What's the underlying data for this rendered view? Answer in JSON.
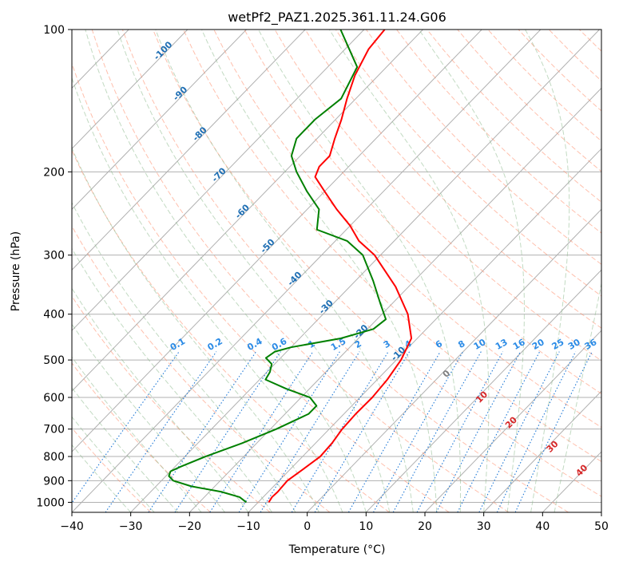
{
  "chart_data": {
    "type": "line",
    "title": "wetPf2_PAZ1.2025.361.11.24.G06",
    "xlabel": "Temperature (°C)",
    "ylabel": "Pressure (hPa)",
    "xlim": [
      -40,
      50
    ],
    "ylim": [
      1050,
      100
    ],
    "x_ticks": [
      "−40",
      "−30",
      "−20",
      "−10",
      "0",
      "10",
      "20",
      "30",
      "40",
      "50"
    ],
    "y_ticks": [
      {
        "p": 100,
        "label": "100"
      },
      {
        "p": 200,
        "label": "200"
      },
      {
        "p": 300,
        "label": "300"
      },
      {
        "p": 400,
        "label": "400"
      },
      {
        "p": 500,
        "label": "500"
      },
      {
        "p": 600,
        "label": "600"
      },
      {
        "p": 700,
        "label": "700"
      },
      {
        "p": 800,
        "label": "800"
      },
      {
        "p": 900,
        "label": "900"
      },
      {
        "p": 1000,
        "label": "1000"
      }
    ],
    "colors": {
      "temperature": "#ff0000",
      "dewpoint": "#008000",
      "isotherm_grid": "#b0b0b0",
      "dry_adiabat": "#ff8c69",
      "moist_adiabat": "#8fbc8f",
      "mixing_ratio": "#1e78d6",
      "isotherm_label": "#1f6fb4",
      "moist_label": "#d62728"
    },
    "series": [
      {
        "name": "Temperature",
        "points": [
          {
            "p": 1000,
            "t": -8.2
          },
          {
            "p": 975,
            "t": -8.5
          },
          {
            "p": 950,
            "t": -8.4
          },
          {
            "p": 900,
            "t": -8.6
          },
          {
            "p": 850,
            "t": -7.8
          },
          {
            "p": 800,
            "t": -7.0
          },
          {
            "p": 750,
            "t": -7.2
          },
          {
            "p": 700,
            "t": -7.8
          },
          {
            "p": 650,
            "t": -8.0
          },
          {
            "p": 600,
            "t": -7.9
          },
          {
            "p": 550,
            "t": -8.3
          },
          {
            "p": 500,
            "t": -9.2
          },
          {
            "p": 450,
            "t": -11.0
          },
          {
            "p": 400,
            "t": -15.6
          },
          {
            "p": 350,
            "t": -22.2
          },
          {
            "p": 300,
            "t": -31.0
          },
          {
            "p": 280,
            "t": -36.0
          },
          {
            "p": 260,
            "t": -40.0
          },
          {
            "p": 240,
            "t": -45.0
          },
          {
            "p": 220,
            "t": -50.0
          },
          {
            "p": 205,
            "t": -54.0
          },
          {
            "p": 195,
            "t": -55.0
          },
          {
            "p": 185,
            "t": -55.0
          },
          {
            "p": 170,
            "t": -57.0
          },
          {
            "p": 155,
            "t": -59.0
          },
          {
            "p": 140,
            "t": -61.5
          },
          {
            "p": 125,
            "t": -64.0
          },
          {
            "p": 110,
            "t": -66.0
          },
          {
            "p": 100,
            "t": -66.5
          }
        ]
      },
      {
        "name": "Dewpoint",
        "points": [
          {
            "p": 1000,
            "t": -12.0
          },
          {
            "p": 975,
            "t": -14.0
          },
          {
            "p": 950,
            "t": -18.0
          },
          {
            "p": 925,
            "t": -24.0
          },
          {
            "p": 900,
            "t": -28.0
          },
          {
            "p": 880,
            "t": -29.5
          },
          {
            "p": 860,
            "t": -30.0
          },
          {
            "p": 840,
            "t": -29.0
          },
          {
            "p": 800,
            "t": -26.5
          },
          {
            "p": 750,
            "t": -22.5
          },
          {
            "p": 700,
            "t": -19.0
          },
          {
            "p": 650,
            "t": -16.0
          },
          {
            "p": 625,
            "t": -16.0
          },
          {
            "p": 600,
            "t": -18.5
          },
          {
            "p": 575,
            "t": -24.0
          },
          {
            "p": 550,
            "t": -29.0
          },
          {
            "p": 530,
            "t": -29.5
          },
          {
            "p": 510,
            "t": -30.5
          },
          {
            "p": 495,
            "t": -32.5
          },
          {
            "p": 480,
            "t": -32.0
          },
          {
            "p": 470,
            "t": -30.0
          },
          {
            "p": 450,
            "t": -23.0
          },
          {
            "p": 430,
            "t": -19.0
          },
          {
            "p": 410,
            "t": -18.5
          },
          {
            "p": 380,
            "t": -22.0
          },
          {
            "p": 340,
            "t": -27.0
          },
          {
            "p": 300,
            "t": -33.0
          },
          {
            "p": 280,
            "t": -38.0
          },
          {
            "p": 265,
            "t": -45.0
          },
          {
            "p": 240,
            "t": -48.0
          },
          {
            "p": 220,
            "t": -53.0
          },
          {
            "p": 200,
            "t": -58.0
          },
          {
            "p": 185,
            "t": -61.5
          },
          {
            "p": 170,
            "t": -63.5
          },
          {
            "p": 155,
            "t": -63.5
          },
          {
            "p": 140,
            "t": -62.5
          },
          {
            "p": 120,
            "t": -65.0
          },
          {
            "p": 100,
            "t": -74.0
          }
        ]
      }
    ],
    "isotherm_labels": [
      {
        "t": -100,
        "text": "-100"
      },
      {
        "t": -90,
        "text": "-90"
      },
      {
        "t": -80,
        "text": "-80"
      },
      {
        "t": -70,
        "text": "-70"
      },
      {
        "t": -60,
        "text": "-60"
      },
      {
        "t": -50,
        "text": "-50"
      },
      {
        "t": -40,
        "text": "-40"
      },
      {
        "t": -30,
        "text": "-30"
      },
      {
        "t": -20,
        "text": "-20"
      },
      {
        "t": -10,
        "text": "-10"
      }
    ],
    "mixing_ratio_labels": [
      {
        "w": 0.1,
        "text": "0.1"
      },
      {
        "w": 0.2,
        "text": "0.2"
      },
      {
        "w": 0.4,
        "text": "0.4"
      },
      {
        "w": 0.6,
        "text": "0.6"
      },
      {
        "w": 1,
        "text": "1"
      },
      {
        "w": 1.5,
        "text": "1.5"
      },
      {
        "w": 2,
        "text": "2"
      },
      {
        "w": 3,
        "text": "3"
      },
      {
        "w": 4,
        "text": "4"
      },
      {
        "w": 6,
        "text": "6"
      },
      {
        "w": 8,
        "text": "8"
      },
      {
        "w": 10,
        "text": "10"
      },
      {
        "w": 13,
        "text": "13"
      },
      {
        "w": 16,
        "text": "16"
      },
      {
        "w": 20,
        "text": "20"
      },
      {
        "w": 25,
        "text": "25"
      },
      {
        "w": 30,
        "text": "30"
      },
      {
        "w": 36,
        "text": "36"
      }
    ],
    "moist_adiabat_labels": [
      {
        "t": 0,
        "text": "0"
      },
      {
        "t": 10,
        "text": "10"
      },
      {
        "t": 20,
        "text": "20"
      },
      {
        "t": 30,
        "text": "30"
      },
      {
        "t": 40,
        "text": "40"
      }
    ]
  }
}
